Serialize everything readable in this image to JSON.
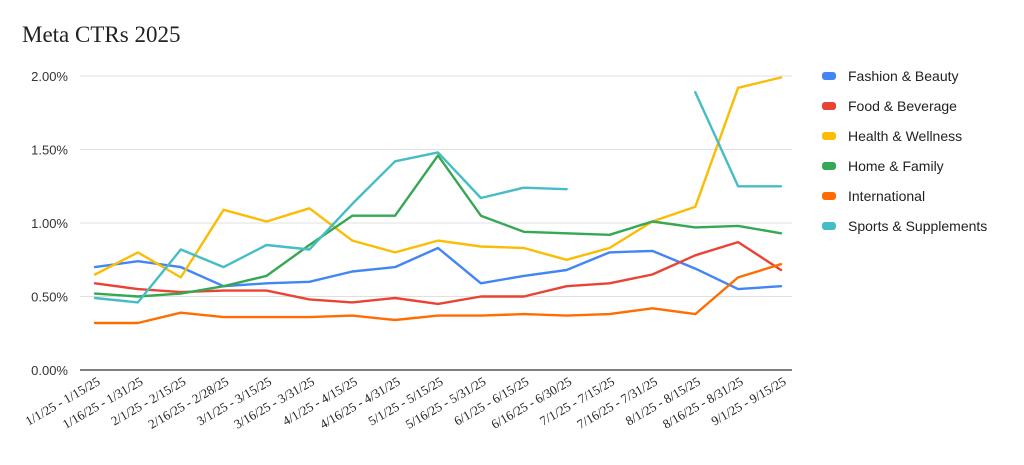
{
  "chart_data": {
    "type": "line",
    "title": "Meta CTRs 2025",
    "xlabel": "",
    "ylabel": "",
    "ylim": [
      0,
      0.02
    ],
    "y_ticks": [
      "0.00%",
      "0.50%",
      "1.00%",
      "1.50%",
      "2.00%"
    ],
    "grid": "horizontal",
    "legend_position": "right",
    "categories": [
      "1/1/25 - 1/15/25",
      "1/16/25 - 1/31/25",
      "2/1/25 - 2/15/25",
      "2/16/25 - 2/28/25",
      "3/1/25 - 3/15/25",
      "3/16/25 - 3/31/25",
      "4/1/25 - 4/15/25",
      "4/16/25 - 4/31/25",
      "5/1/25 - 5/15/25",
      "5/16/25 - 5/31/25",
      "6/1/25 - 6/15/25",
      "6/16/25 - 6/30/25",
      "7/1/25 - 7/15/25",
      "7/16/25 - 7/31/25",
      "8/1/25 - 8/15/25",
      "8/16/25 - 8/31/25",
      "9/1/25 - 9/15/25"
    ],
    "series": [
      {
        "name": "Fashion & Beauty",
        "color": "#4285F4",
        "values": [
          0.007,
          0.0074,
          0.007,
          0.0057,
          0.0059,
          0.006,
          0.0067,
          0.007,
          0.0083,
          0.0059,
          0.0064,
          0.0068,
          0.008,
          0.0081,
          0.0069,
          0.0055,
          0.0057
        ]
      },
      {
        "name": "Food & Beverage",
        "color": "#EA4335",
        "values": [
          0.0059,
          0.0055,
          0.0053,
          0.0054,
          0.0054,
          0.0048,
          0.0046,
          0.0049,
          0.0045,
          0.005,
          0.005,
          0.0057,
          0.0059,
          0.0065,
          0.0078,
          0.0087,
          0.0068
        ]
      },
      {
        "name": "Health & Wellness",
        "color": "#FBBC04",
        "values": [
          0.0065,
          0.008,
          0.0063,
          0.0109,
          0.0101,
          0.011,
          0.0088,
          0.008,
          0.0088,
          0.0084,
          0.0083,
          0.0075,
          0.0083,
          0.0101,
          0.0111,
          0.0192,
          0.0199
        ]
      },
      {
        "name": "Home & Family",
        "color": "#34A853",
        "values": [
          0.0052,
          0.005,
          0.0052,
          0.0057,
          0.0064,
          0.0085,
          0.0105,
          0.0105,
          0.0146,
          0.0105,
          0.0094,
          0.0093,
          0.0092,
          0.0101,
          0.0097,
          0.0098,
          0.0093
        ]
      },
      {
        "name": "International",
        "color": "#FF6D01",
        "values": [
          0.0032,
          0.0032,
          0.0039,
          0.0036,
          0.0036,
          0.0036,
          0.0037,
          0.0034,
          0.0037,
          0.0037,
          0.0038,
          0.0037,
          0.0038,
          0.0042,
          0.0038,
          0.0063,
          0.0072
        ]
      },
      {
        "name": "Sports & Supplements",
        "color": "#46BDC6",
        "values": [
          0.0049,
          0.0046,
          0.0082,
          0.007,
          0.0085,
          0.0082,
          0.0113,
          0.0142,
          0.0148,
          0.0117,
          0.0124,
          0.0123,
          null,
          null,
          0.0189,
          0.0125,
          0.0125
        ]
      }
    ]
  }
}
